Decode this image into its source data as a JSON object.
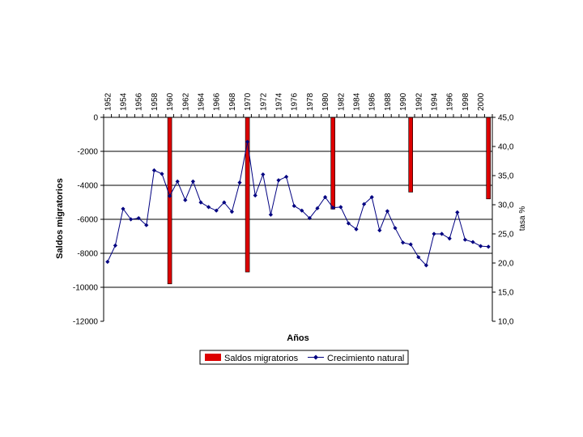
{
  "chart_data": {
    "type": "bar",
    "title": "",
    "xlabel": "Años",
    "ylabel_left": "Saldos migratorios",
    "ylabel_right": "tasa %",
    "y_left_ticks": [
      "0",
      "-2000",
      "-4000",
      "-6000",
      "-8000",
      "-10000",
      "-12000"
    ],
    "y_left_lim": [
      -12000,
      0
    ],
    "y_right_ticks": [
      "45,0",
      "40,0",
      "35,0",
      "30,0",
      "25,0",
      "20,0",
      "15,0",
      "10,0"
    ],
    "y_right_lim": [
      10,
      45
    ],
    "x_tick_labels": [
      "1952",
      "1954",
      "1956",
      "1958",
      "1960",
      "1962",
      "1964",
      "1966",
      "1968",
      "1970",
      "1972",
      "1974",
      "1976",
      "1978",
      "1980",
      "1982",
      "1984",
      "1986",
      "1988",
      "1990",
      "1992",
      "1994",
      "1996",
      "1998",
      "2000"
    ],
    "x_range": [
      1952,
      2001
    ],
    "grid": true,
    "legend_position": "bottom",
    "series": [
      {
        "name": "Saldos migratorios",
        "type": "bar",
        "axis": "left",
        "color": "#dd0000",
        "x": [
          1960,
          1970,
          1981,
          1991,
          2001
        ],
        "values": [
          -9800,
          -9100,
          -5400,
          -4400,
          -4800
        ]
      },
      {
        "name": "Crecimiento natural",
        "type": "line",
        "axis": "right",
        "color": "#000080",
        "x": [
          1952,
          1953,
          1954,
          1955,
          1956,
          1957,
          1958,
          1959,
          1960,
          1961,
          1962,
          1963,
          1964,
          1965,
          1966,
          1967,
          1968,
          1969,
          1970,
          1971,
          1972,
          1973,
          1974,
          1975,
          1976,
          1977,
          1978,
          1979,
          1980,
          1981,
          1982,
          1983,
          1984,
          1985,
          1986,
          1987,
          1988,
          1989,
          1990,
          1991,
          1992,
          1993,
          1994,
          1995,
          1996,
          1997,
          1998,
          1999,
          2000,
          2001
        ],
        "values": [
          20.2,
          23.0,
          29.3,
          27.5,
          27.7,
          26.5,
          35.9,
          35.3,
          31.5,
          34.0,
          30.8,
          34.0,
          30.4,
          29.6,
          29.0,
          30.4,
          28.8,
          33.8,
          40.8,
          31.6,
          35.2,
          28.3,
          34.2,
          34.8,
          29.8,
          29.0,
          27.7,
          29.4,
          31.3,
          29.5,
          29.6,
          26.8,
          25.8,
          30.1,
          31.3,
          25.6,
          28.9,
          26.0,
          23.5,
          23.2,
          21.0,
          19.6,
          25.0,
          25.0,
          24.2,
          28.7,
          24.0,
          23.6,
          22.9,
          22.8
        ]
      }
    ]
  }
}
